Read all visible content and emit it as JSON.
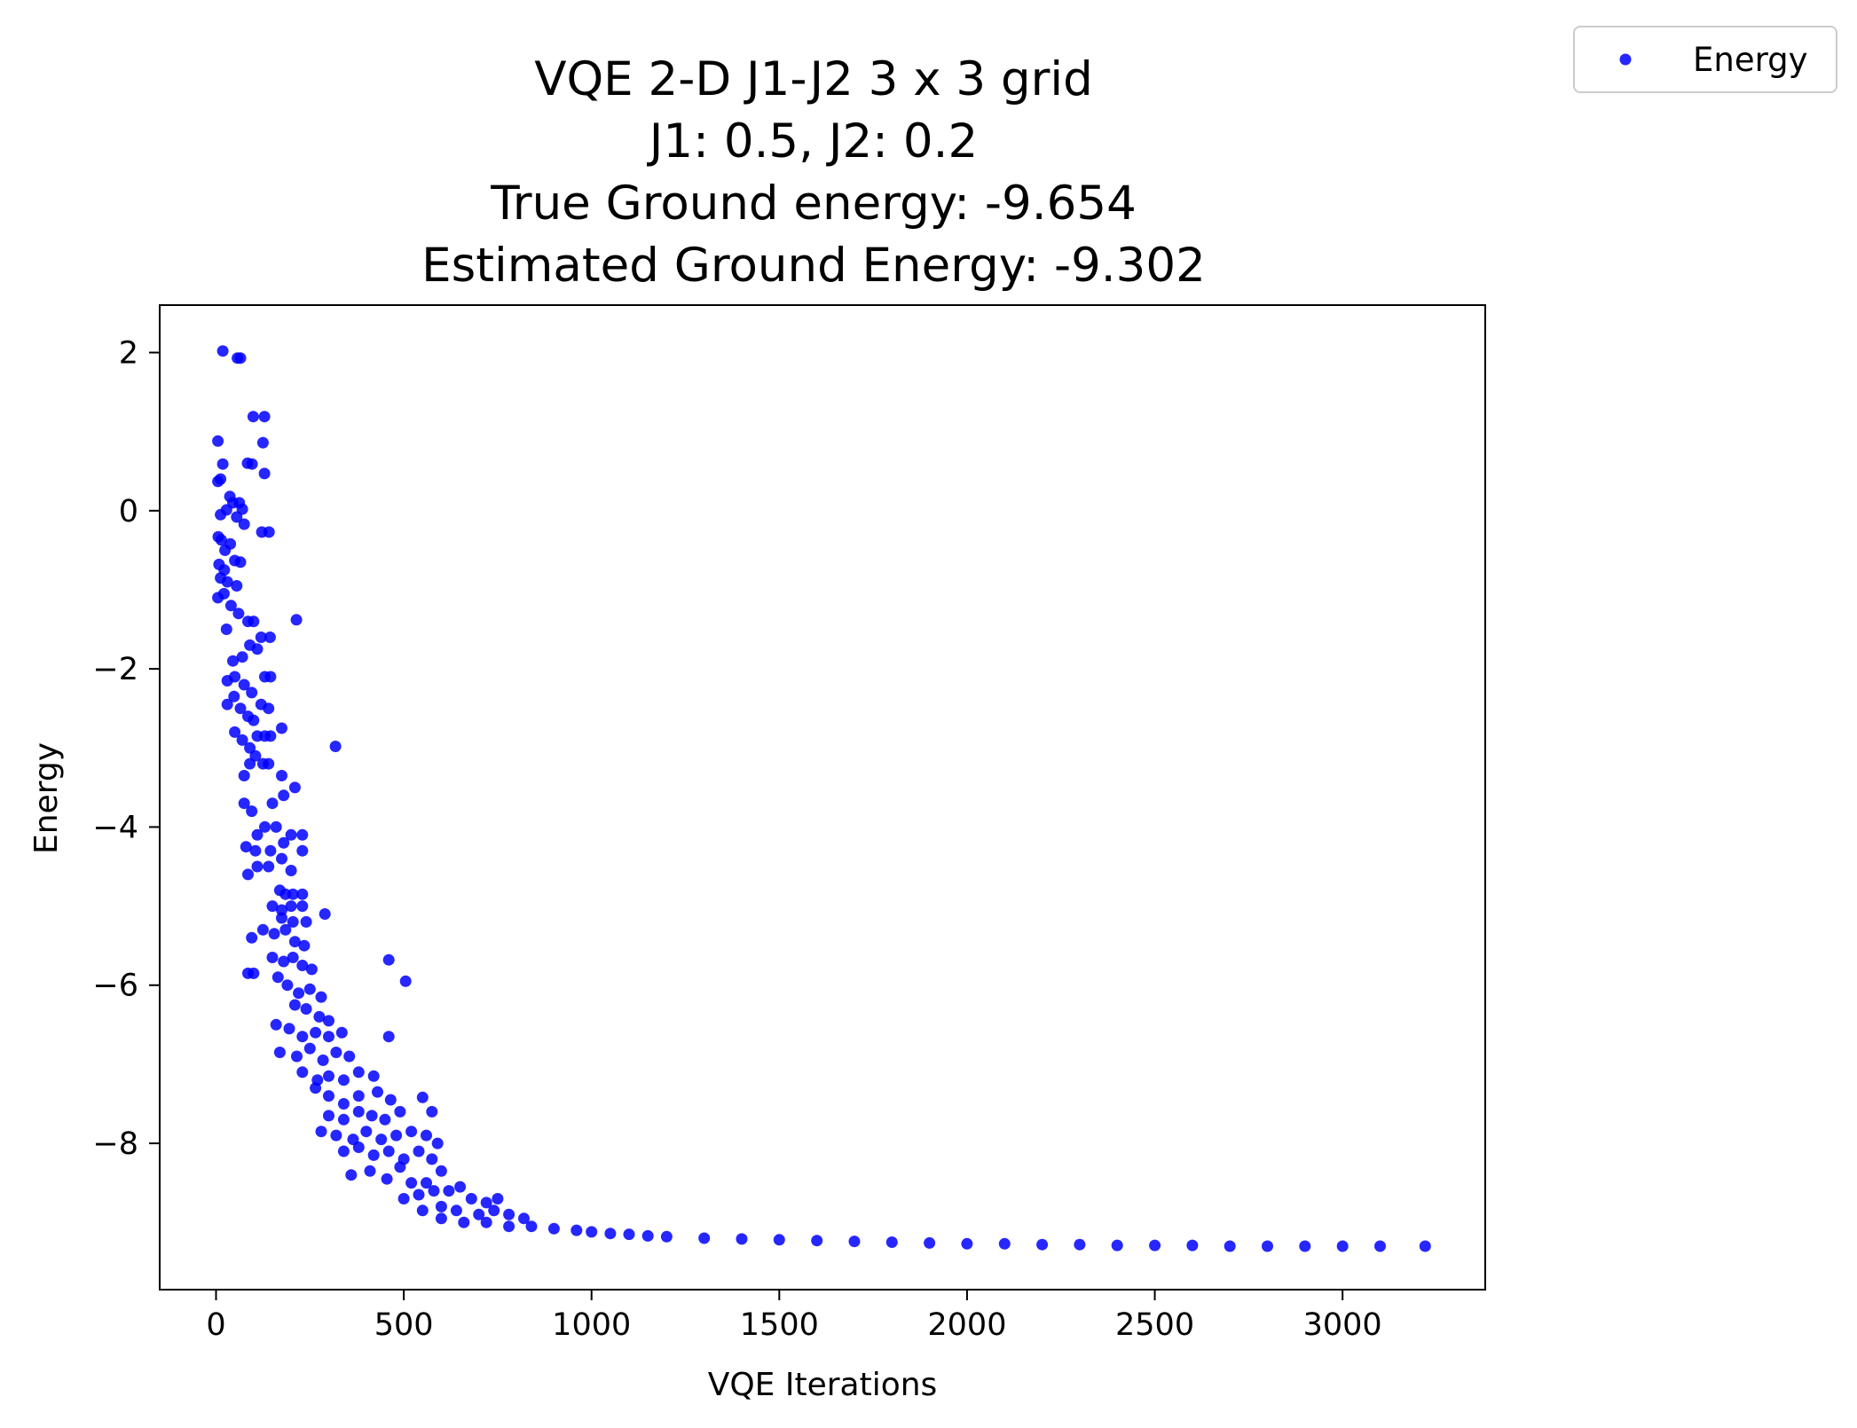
{
  "chart_data": {
    "type": "scatter",
    "title_lines": [
      "VQE 2-D J1-J2 3 x 3 grid",
      "J1: 0.5, J2: 0.2",
      "True Ground energy: -9.654",
      "Estimated Ground Energy: -9.302"
    ],
    "xlabel": "VQE Iterations",
    "ylabel": "Energy",
    "xlim": [
      -150,
      3380
    ],
    "ylim": [
      -9.85,
      2.6
    ],
    "xticks": [
      0,
      500,
      1000,
      1500,
      2000,
      2500,
      3000
    ],
    "xtick_labels": [
      "0",
      "500",
      "1000",
      "1500",
      "2000",
      "2500",
      "3000"
    ],
    "yticks": [
      2,
      0,
      -2,
      -4,
      -6,
      -8
    ],
    "ytick_labels": [
      "2",
      "0",
      "−2",
      "−4",
      "−6",
      "−8"
    ],
    "grid": false,
    "legend_position": "outside-top-right",
    "series": [
      {
        "name": "Energy",
        "color": "#0000ff",
        "points": [
          [
            18,
            2.02
          ],
          [
            57,
            1.93
          ],
          [
            65,
            1.93
          ],
          [
            99,
            1.19
          ],
          [
            129,
            1.19
          ],
          [
            5,
            0.88
          ],
          [
            125,
            0.86
          ],
          [
            84,
            0.6
          ],
          [
            96,
            0.59
          ],
          [
            18,
            0.59
          ],
          [
            129,
            0.47
          ],
          [
            5,
            0.37
          ],
          [
            12,
            0.4
          ],
          [
            37,
            0.18
          ],
          [
            45,
            0.1
          ],
          [
            62,
            0.1
          ],
          [
            28,
            0.01
          ],
          [
            70,
            0.02
          ],
          [
            12,
            -0.05
          ],
          [
            55,
            -0.08
          ],
          [
            75,
            -0.17
          ],
          [
            122,
            -0.27
          ],
          [
            141,
            -0.27
          ],
          [
            6,
            -0.33
          ],
          [
            14,
            -0.37
          ],
          [
            24,
            -0.5
          ],
          [
            38,
            -0.42
          ],
          [
            50,
            -0.63
          ],
          [
            8,
            -0.68
          ],
          [
            22,
            -0.75
          ],
          [
            65,
            -0.65
          ],
          [
            12,
            -0.85
          ],
          [
            30,
            -0.9
          ],
          [
            55,
            -0.95
          ],
          [
            5,
            -1.1
          ],
          [
            21,
            -1.05
          ],
          [
            40,
            -1.2
          ],
          [
            60,
            -1.3
          ],
          [
            85,
            -1.4
          ],
          [
            100,
            -1.4
          ],
          [
            120,
            -1.6
          ],
          [
            144,
            -1.6
          ],
          [
            214,
            -1.38
          ],
          [
            28,
            -1.5
          ],
          [
            45,
            -1.9
          ],
          [
            70,
            -1.85
          ],
          [
            90,
            -1.7
          ],
          [
            110,
            -1.75
          ],
          [
            30,
            -2.15
          ],
          [
            50,
            -2.1
          ],
          [
            75,
            -2.2
          ],
          [
            95,
            -2.3
          ],
          [
            130,
            -2.1
          ],
          [
            145,
            -2.1
          ],
          [
            30,
            -2.45
          ],
          [
            48,
            -2.35
          ],
          [
            65,
            -2.5
          ],
          [
            85,
            -2.6
          ],
          [
            100,
            -2.65
          ],
          [
            120,
            -2.45
          ],
          [
            140,
            -2.5
          ],
          [
            175,
            -2.75
          ],
          [
            50,
            -2.8
          ],
          [
            70,
            -2.9
          ],
          [
            90,
            -3.0
          ],
          [
            110,
            -2.85
          ],
          [
            130,
            -2.85
          ],
          [
            145,
            -2.85
          ],
          [
            318,
            -2.98
          ],
          [
            90,
            -3.2
          ],
          [
            105,
            -3.1
          ],
          [
            125,
            -3.2
          ],
          [
            140,
            -3.2
          ],
          [
            75,
            -3.35
          ],
          [
            175,
            -3.35
          ],
          [
            210,
            -3.5
          ],
          [
            75,
            -3.7
          ],
          [
            95,
            -3.8
          ],
          [
            150,
            -3.7
          ],
          [
            180,
            -3.6
          ],
          [
            110,
            -4.1
          ],
          [
            130,
            -4.0
          ],
          [
            160,
            -4.0
          ],
          [
            200,
            -4.1
          ],
          [
            230,
            -4.1
          ],
          [
            80,
            -4.25
          ],
          [
            105,
            -4.3
          ],
          [
            145,
            -4.3
          ],
          [
            180,
            -4.2
          ],
          [
            230,
            -4.3
          ],
          [
            85,
            -4.6
          ],
          [
            110,
            -4.5
          ],
          [
            140,
            -4.5
          ],
          [
            175,
            -4.4
          ],
          [
            200,
            -4.55
          ],
          [
            170,
            -4.8
          ],
          [
            185,
            -4.85
          ],
          [
            205,
            -4.85
          ],
          [
            230,
            -4.85
          ],
          [
            150,
            -5.0
          ],
          [
            175,
            -5.05
          ],
          [
            200,
            -5.0
          ],
          [
            230,
            -5.0
          ],
          [
            175,
            -5.15
          ],
          [
            205,
            -5.2
          ],
          [
            240,
            -5.2
          ],
          [
            290,
            -5.1
          ],
          [
            125,
            -5.3
          ],
          [
            155,
            -5.35
          ],
          [
            185,
            -5.3
          ],
          [
            210,
            -5.45
          ],
          [
            235,
            -5.5
          ],
          [
            95,
            -5.4
          ],
          [
            150,
            -5.65
          ],
          [
            180,
            -5.7
          ],
          [
            205,
            -5.65
          ],
          [
            230,
            -5.75
          ],
          [
            255,
            -5.8
          ],
          [
            460,
            -5.68
          ],
          [
            85,
            -5.85
          ],
          [
            100,
            -5.85
          ],
          [
            165,
            -5.9
          ],
          [
            190,
            -6.0
          ],
          [
            220,
            -6.1
          ],
          [
            250,
            -6.05
          ],
          [
            280,
            -6.15
          ],
          [
            505,
            -5.95
          ],
          [
            210,
            -6.25
          ],
          [
            240,
            -6.3
          ],
          [
            275,
            -6.4
          ],
          [
            300,
            -6.45
          ],
          [
            160,
            -6.5
          ],
          [
            195,
            -6.55
          ],
          [
            230,
            -6.65
          ],
          [
            265,
            -6.6
          ],
          [
            300,
            -6.65
          ],
          [
            335,
            -6.6
          ],
          [
            460,
            -6.65
          ],
          [
            170,
            -6.85
          ],
          [
            215,
            -6.9
          ],
          [
            250,
            -6.8
          ],
          [
            285,
            -6.95
          ],
          [
            320,
            -6.85
          ],
          [
            355,
            -6.9
          ],
          [
            230,
            -7.1
          ],
          [
            270,
            -7.2
          ],
          [
            300,
            -7.15
          ],
          [
            340,
            -7.2
          ],
          [
            380,
            -7.1
          ],
          [
            420,
            -7.15
          ],
          [
            265,
            -7.3
          ],
          [
            300,
            -7.4
          ],
          [
            340,
            -7.5
          ],
          [
            380,
            -7.4
          ],
          [
            430,
            -7.35
          ],
          [
            465,
            -7.45
          ],
          [
            550,
            -7.42
          ],
          [
            300,
            -7.65
          ],
          [
            340,
            -7.7
          ],
          [
            380,
            -7.6
          ],
          [
            415,
            -7.65
          ],
          [
            450,
            -7.7
          ],
          [
            490,
            -7.6
          ],
          [
            575,
            -7.6
          ],
          [
            280,
            -7.85
          ],
          [
            320,
            -7.9
          ],
          [
            365,
            -7.95
          ],
          [
            400,
            -7.85
          ],
          [
            440,
            -7.95
          ],
          [
            480,
            -7.9
          ],
          [
            520,
            -7.85
          ],
          [
            560,
            -7.9
          ],
          [
            590,
            -8.0
          ],
          [
            340,
            -8.1
          ],
          [
            380,
            -8.05
          ],
          [
            420,
            -8.15
          ],
          [
            460,
            -8.1
          ],
          [
            500,
            -8.2
          ],
          [
            540,
            -8.1
          ],
          [
            575,
            -8.2
          ],
          [
            360,
            -8.4
          ],
          [
            410,
            -8.35
          ],
          [
            455,
            -8.45
          ],
          [
            490,
            -8.3
          ],
          [
            520,
            -8.5
          ],
          [
            560,
            -8.5
          ],
          [
            600,
            -8.35
          ],
          [
            500,
            -8.7
          ],
          [
            540,
            -8.65
          ],
          [
            580,
            -8.6
          ],
          [
            620,
            -8.6
          ],
          [
            650,
            -8.55
          ],
          [
            680,
            -8.7
          ],
          [
            720,
            -8.75
          ],
          [
            750,
            -8.7
          ],
          [
            550,
            -8.85
          ],
          [
            600,
            -8.8
          ],
          [
            640,
            -8.85
          ],
          [
            700,
            -8.9
          ],
          [
            740,
            -8.85
          ],
          [
            780,
            -8.9
          ],
          [
            820,
            -8.95
          ],
          [
            600,
            -8.95
          ],
          [
            660,
            -9.0
          ],
          [
            720,
            -9.0
          ],
          [
            780,
            -9.05
          ],
          [
            840,
            -9.05
          ],
          [
            900,
            -9.08
          ],
          [
            960,
            -9.1
          ],
          [
            1000,
            -9.12
          ],
          [
            1050,
            -9.14
          ],
          [
            1100,
            -9.15
          ],
          [
            1150,
            -9.17
          ],
          [
            1200,
            -9.18
          ],
          [
            1300,
            -9.2
          ],
          [
            1400,
            -9.21
          ],
          [
            1500,
            -9.22
          ],
          [
            1600,
            -9.23
          ],
          [
            1700,
            -9.24
          ],
          [
            1800,
            -9.25
          ],
          [
            1900,
            -9.26
          ],
          [
            2000,
            -9.27
          ],
          [
            2100,
            -9.27
          ],
          [
            2200,
            -9.28
          ],
          [
            2300,
            -9.28
          ],
          [
            2400,
            -9.29
          ],
          [
            2500,
            -9.29
          ],
          [
            2600,
            -9.29
          ],
          [
            2700,
            -9.3
          ],
          [
            2800,
            -9.3
          ],
          [
            2900,
            -9.3
          ],
          [
            3000,
            -9.3
          ],
          [
            3100,
            -9.3
          ],
          [
            3220,
            -9.3
          ]
        ]
      }
    ]
  }
}
